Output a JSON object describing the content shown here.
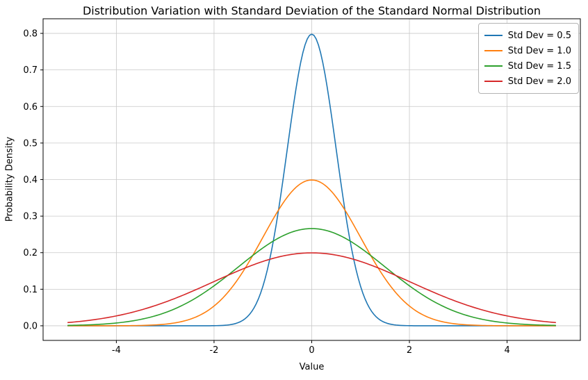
{
  "chart_data": {
    "type": "line",
    "title": "Distribution Variation with Standard Deviation of the Standard Normal Distribution",
    "xlabel": "Value",
    "ylabel": "Probability Density",
    "xlim": [
      -5.5,
      5.5
    ],
    "ylim": [
      -0.04,
      0.84
    ],
    "x_ticks": [
      -4,
      -2,
      0,
      2,
      4
    ],
    "y_ticks": [
      0.0,
      0.1,
      0.2,
      0.3,
      0.4,
      0.5,
      0.6,
      0.7,
      0.8
    ],
    "x_range_data": [
      -5,
      5
    ],
    "grid": true,
    "legend_position": "upper right",
    "distribution": "normal",
    "mean": 0,
    "series": [
      {
        "name": "Std Dev = 0.5",
        "sigma": 0.5,
        "peak": 0.7979,
        "color": "#1f77b4"
      },
      {
        "name": "Std Dev = 1.0",
        "sigma": 1.0,
        "peak": 0.3989,
        "color": "#ff7f0e"
      },
      {
        "name": "Std Dev = 1.5",
        "sigma": 1.5,
        "peak": 0.266,
        "color": "#2ca02c"
      },
      {
        "name": "Std Dev = 2.0",
        "sigma": 2.0,
        "peak": 0.1995,
        "color": "#d62728"
      }
    ]
  }
}
